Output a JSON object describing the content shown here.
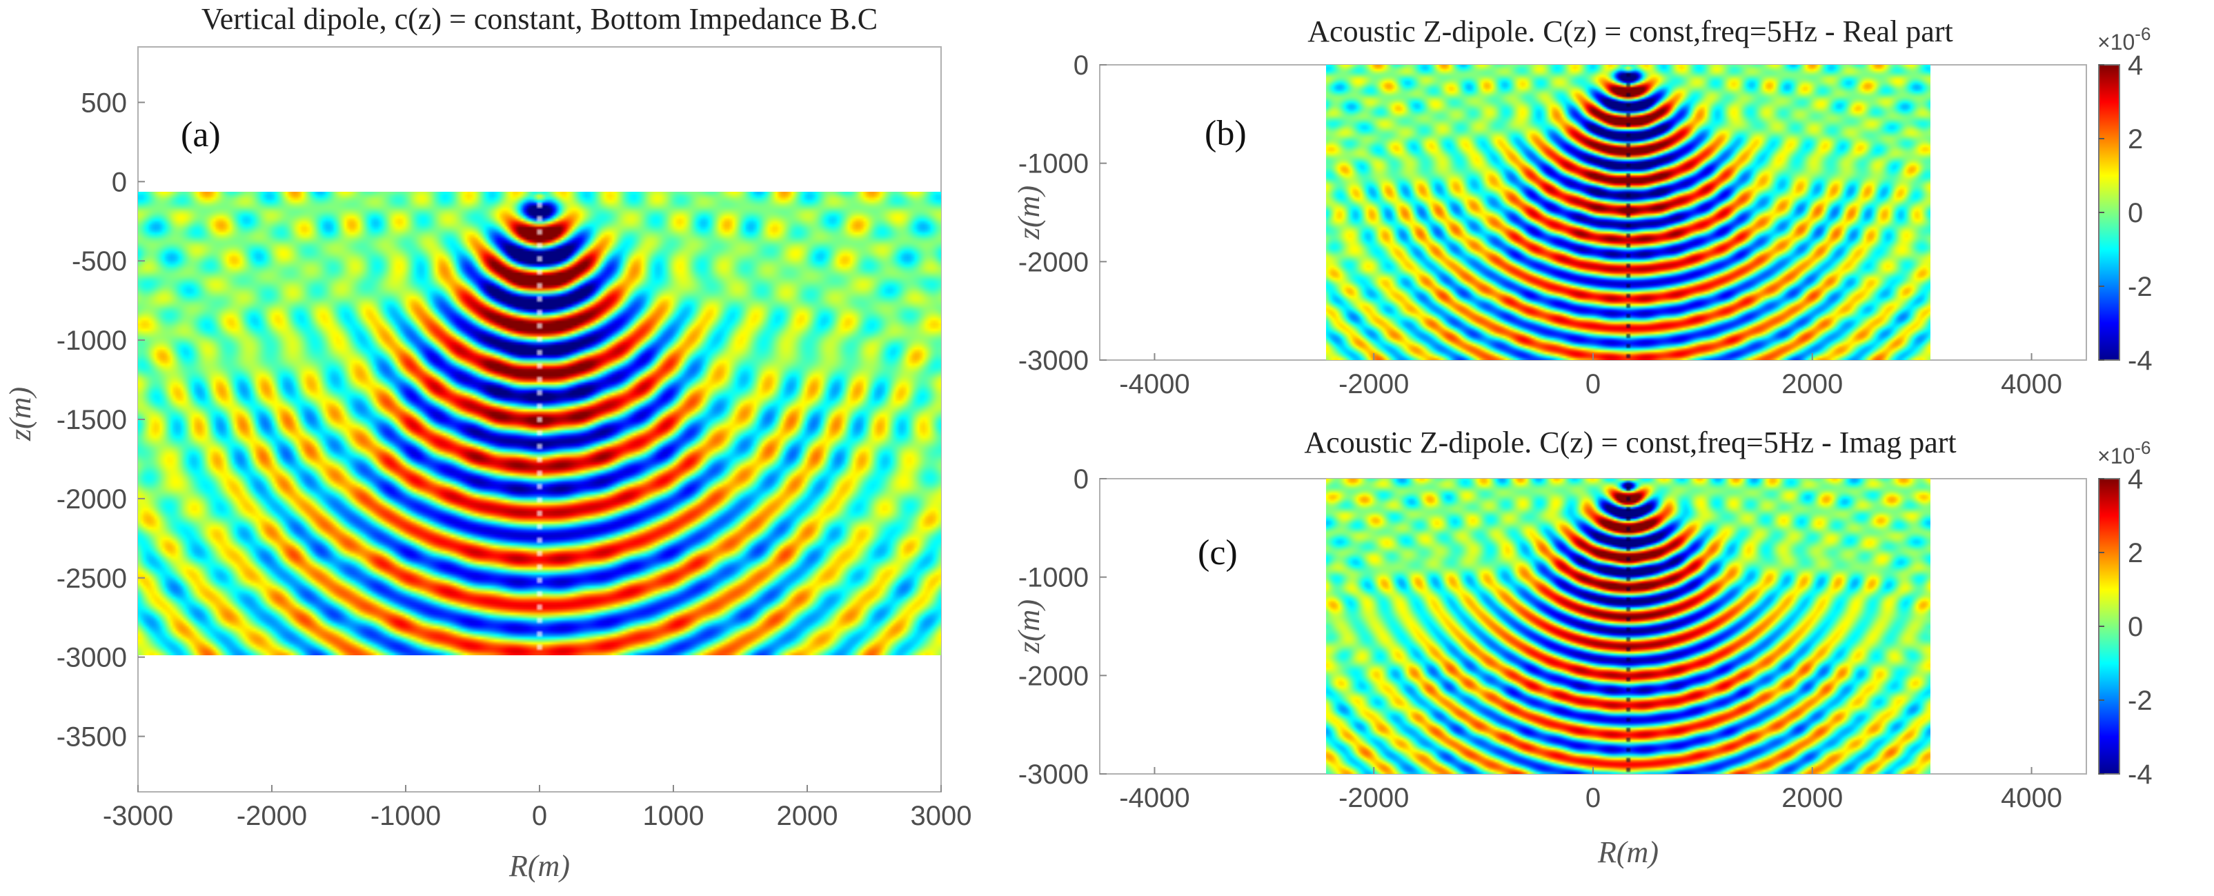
{
  "chart_data": [
    {
      "type": "heatmap",
      "panel_label": "(a)",
      "title": "Vertical dipole, c(z) = constant, Bottom Impedance B.C",
      "xlabel": "R(m)",
      "ylabel": "z(m)",
      "xlim": [
        -3000,
        3000
      ],
      "ylim": [
        -3850,
        850
      ],
      "field_extent": {
        "x": [
          -3000,
          3000
        ],
        "z": [
          -3000,
          0
        ]
      },
      "x_ticks": [
        "-3000",
        "-2000",
        "-1000",
        "0",
        "1000",
        "2000",
        "3000"
      ],
      "y_ticks": [
        "500",
        "0",
        "-500",
        "-1000",
        "-1500",
        "-2000",
        "-2500",
        "-3000",
        "-3500"
      ],
      "y_tick_values": [
        500,
        0,
        -500,
        -1000,
        -1500,
        -2000,
        -2500,
        -3000,
        -3500
      ],
      "x_tick_values": [
        -3000,
        -2000,
        -1000,
        0,
        1000,
        2000,
        3000
      ],
      "colormap": "jet",
      "colorbar": false,
      "grid": false
    },
    {
      "type": "heatmap",
      "panel_label": "(b)",
      "title": "Acoustic Z-dipole. C(z) = const,freq=5Hz - Real part",
      "xlabel": "",
      "ylabel": "z(m)",
      "xlim": [
        -4500,
        4500
      ],
      "ylim": [
        -3000,
        0
      ],
      "field_extent": {
        "x": [
          -3000,
          3000
        ],
        "z": [
          -3000,
          0
        ]
      },
      "x_ticks": [
        "-4000",
        "-2000",
        "0",
        "2000",
        "4000"
      ],
      "x_tick_values": [
        -4000,
        -2000,
        0,
        2000,
        4000
      ],
      "y_ticks": [
        "0",
        "-1000",
        "-2000",
        "-3000"
      ],
      "y_tick_values": [
        0,
        -1000,
        -2000,
        -3000
      ],
      "colormap": "jet",
      "colorbar": {
        "ticks": [
          "4",
          "2",
          "0",
          "-2",
          "-4"
        ],
        "tick_values": [
          4,
          2,
          0,
          -2,
          -4
        ],
        "range": [
          -4,
          4
        ],
        "multiplier_base": "×10",
        "multiplier_exp": "-6"
      },
      "grid": false
    },
    {
      "type": "heatmap",
      "panel_label": "(c)",
      "title": "Acoustic Z-dipole. C(z) = const,freq=5Hz - Imag part",
      "xlabel": "R(m)",
      "ylabel": "z(m)",
      "xlim": [
        -4500,
        4500
      ],
      "ylim": [
        -3000,
        0
      ],
      "field_extent": {
        "x": [
          -3000,
          3000
        ],
        "z": [
          -3000,
          0
        ]
      },
      "x_ticks": [
        "-4000",
        "-2000",
        "0",
        "2000",
        "4000"
      ],
      "x_tick_values": [
        -4000,
        -2000,
        0,
        2000,
        4000
      ],
      "y_ticks": [
        "0",
        "-1000",
        "-2000",
        "-3000"
      ],
      "y_tick_values": [
        0,
        -1000,
        -2000,
        -3000
      ],
      "colormap": "jet",
      "colorbar": {
        "ticks": [
          "4",
          "2",
          "0",
          "-2",
          "-4"
        ],
        "tick_values": [
          4,
          2,
          0,
          -2,
          -4
        ],
        "range": [
          -4,
          4
        ],
        "multiplier_base": "×10",
        "multiplier_exp": "-6"
      },
      "grid": false
    }
  ]
}
